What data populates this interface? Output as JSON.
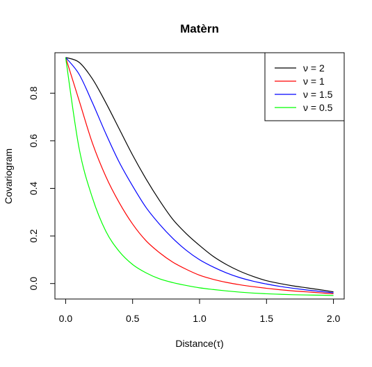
{
  "chart_data": {
    "type": "line",
    "title": "Matèrn",
    "xlabel": "Distance(τ)",
    "ylabel": "Covariogram",
    "xlim": [
      -0.08,
      2.08
    ],
    "ylim": [
      -0.065,
      0.97
    ],
    "xticks": [
      0.0,
      0.5,
      1.0,
      1.5,
      2.0
    ],
    "xtick_labels": [
      "0.0",
      "0.5",
      "1.0",
      "1.5",
      "2.0"
    ],
    "yticks": [
      0.0,
      0.2,
      0.4,
      0.6,
      0.8
    ],
    "ytick_labels": [
      "0.0",
      "0.2",
      "0.4",
      "0.6",
      "0.8"
    ],
    "grid": false,
    "legend_position": "top-right",
    "x": [
      0.0,
      0.1,
      0.2,
      0.3,
      0.4,
      0.5,
      0.6,
      0.7,
      0.8,
      0.9,
      1.0,
      1.1,
      1.2,
      1.3,
      1.4,
      1.5,
      1.6,
      1.7,
      1.8,
      1.9,
      2.0
    ],
    "series": [
      {
        "name": "ν = 2",
        "color": "#000000",
        "values": [
          0.95,
          0.93,
          0.86,
          0.76,
          0.65,
          0.54,
          0.44,
          0.35,
          0.27,
          0.21,
          0.16,
          0.115,
          0.08,
          0.052,
          0.03,
          0.012,
          0.0,
          -0.01,
          -0.018,
          -0.026,
          -0.035
        ]
      },
      {
        "name": "ν = 1",
        "color": "#ff0000",
        "values": [
          0.95,
          0.77,
          0.59,
          0.45,
          0.34,
          0.25,
          0.18,
          0.13,
          0.09,
          0.06,
          0.035,
          0.018,
          0.005,
          -0.005,
          -0.013,
          -0.02,
          -0.026,
          -0.031,
          -0.035,
          -0.039,
          -0.043
        ]
      },
      {
        "name": "ν = 1.5",
        "color": "#0000ff",
        "values": [
          0.95,
          0.88,
          0.76,
          0.63,
          0.51,
          0.41,
          0.32,
          0.25,
          0.19,
          0.14,
          0.1,
          0.07,
          0.045,
          0.025,
          0.01,
          -0.002,
          -0.012,
          -0.02,
          -0.027,
          -0.033,
          -0.039
        ]
      },
      {
        "name": "ν = 0.5",
        "color": "#00ff00",
        "values": [
          0.95,
          0.57,
          0.36,
          0.22,
          0.135,
          0.08,
          0.045,
          0.02,
          0.004,
          -0.008,
          -0.018,
          -0.025,
          -0.031,
          -0.036,
          -0.04,
          -0.043,
          -0.045,
          -0.047,
          -0.048,
          -0.049,
          -0.05
        ]
      }
    ]
  }
}
